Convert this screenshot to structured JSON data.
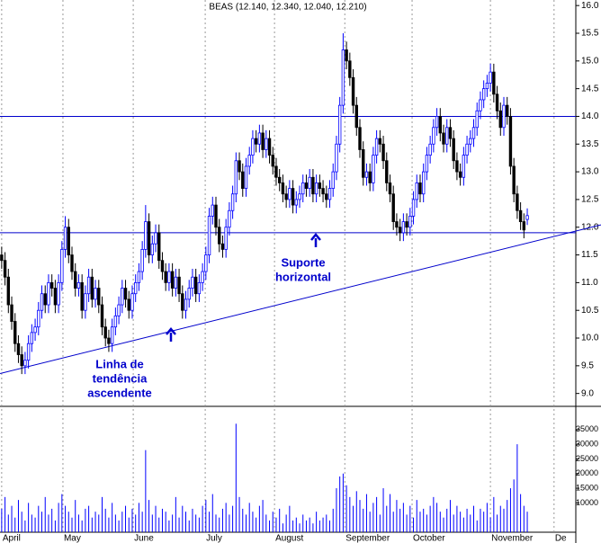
{
  "chart_data": {
    "type": "candlestick",
    "title": "BEAS (12.140, 12.340, 12.040, 12.210)",
    "open": [
      11.5,
      11.4,
      11.1,
      10.6,
      10.3,
      9.9,
      9.7,
      9.5,
      9.6,
      9.9,
      10.1,
      10.2,
      10.5,
      10.8,
      10.6,
      11.0,
      10.9,
      10.6,
      11.0,
      11.6,
      12.0,
      11.5,
      11.2,
      10.9,
      11.0,
      10.5,
      10.8,
      11.1,
      10.7,
      10.9,
      10.6,
      10.2,
      10.0,
      9.9,
      10.2,
      10.4,
      10.6,
      10.9,
      10.7,
      10.5,
      10.8,
      11.0,
      11.2,
      11.6,
      12.1,
      11.5,
      11.7,
      11.9,
      11.4,
      11.2,
      11.0,
      11.2,
      10.9,
      11.1,
      10.8,
      10.5,
      10.7,
      10.9,
      11.1,
      10.8,
      11.0,
      11.2,
      11.5,
      12.2,
      12.4,
      12.0,
      11.7,
      11.6,
      12.0,
      12.3,
      12.6,
      13.2,
      13.0,
      12.7,
      13.1,
      13.3,
      13.6,
      13.5,
      13.7,
      13.4,
      13.6,
      13.3,
      13.1,
      12.9,
      12.8,
      12.6,
      12.5,
      12.7,
      12.4,
      12.5,
      12.6,
      12.8,
      12.7,
      12.9,
      12.6,
      12.8,
      12.7,
      12.6,
      12.5,
      12.7,
      13.0,
      13.5,
      14.2,
      15.2,
      15.0,
      14.7,
      14.2,
      13.8,
      13.4,
      12.9,
      13.0,
      12.8,
      13.3,
      13.6,
      13.5,
      13.2,
      12.8,
      12.6,
      12.1,
      12.0,
      11.9,
      12.1,
      12.0,
      12.2,
      12.5,
      12.8,
      12.6,
      13.0,
      13.3,
      13.5,
      13.8,
      14.0,
      13.7,
      13.5,
      13.8,
      13.6,
      13.2,
      13.0,
      12.9,
      13.3,
      13.5,
      13.6,
      13.8,
      14.1,
      14.3,
      14.5,
      14.6,
      14.8,
      14.4,
      14.1,
      13.8,
      14.2,
      14.0,
      13.1,
      12.6,
      12.3,
      12.1,
      12.14
    ],
    "high": [
      11.65,
      11.55,
      11.25,
      10.75,
      10.45,
      10.05,
      9.85,
      9.75,
      10.05,
      10.25,
      10.35,
      10.65,
      10.95,
      10.95,
      11.15,
      11.15,
      11.05,
      11.15,
      11.75,
      12.2,
      12.15,
      11.65,
      11.35,
      11.15,
      11.15,
      10.95,
      11.25,
      11.25,
      11.05,
      11.05,
      10.75,
      10.35,
      10.15,
      10.35,
      10.55,
      10.75,
      11.05,
      11.05,
      10.85,
      10.95,
      11.15,
      11.35,
      11.75,
      12.4,
      12.25,
      11.85,
      12.05,
      12.05,
      11.55,
      11.35,
      11.35,
      11.35,
      11.25,
      11.25,
      10.95,
      10.85,
      11.05,
      11.25,
      11.25,
      11.15,
      11.35,
      11.65,
      12.35,
      12.55,
      12.55,
      12.15,
      11.85,
      12.15,
      12.45,
      12.75,
      13.35,
      13.35,
      13.15,
      13.25,
      13.45,
      13.75,
      13.75,
      13.85,
      13.85,
      13.75,
      13.75,
      13.45,
      13.25,
      13.05,
      12.95,
      12.75,
      12.85,
      12.85,
      12.65,
      12.75,
      12.95,
      12.95,
      13.05,
      13.05,
      12.95,
      12.95,
      12.85,
      12.75,
      12.85,
      13.15,
      13.65,
      14.35,
      15.5,
      15.35,
      15.15,
      14.85,
      14.35,
      13.95,
      13.55,
      13.15,
      13.15,
      13.45,
      13.75,
      13.75,
      13.65,
      13.35,
      12.95,
      12.75,
      12.25,
      12.15,
      12.25,
      12.25,
      12.35,
      12.65,
      12.95,
      12.95,
      13.15,
      13.45,
      13.65,
      13.95,
      14.15,
      14.15,
      13.85,
      13.95,
      13.95,
      13.75,
      13.35,
      13.15,
      13.45,
      13.65,
      13.75,
      13.95,
      14.25,
      14.45,
      14.65,
      14.75,
      14.95,
      14.95,
      14.55,
      14.25,
      14.35,
      14.35,
      14.15,
      13.25,
      12.75,
      12.45,
      12.25,
      12.34
    ],
    "low": [
      11.25,
      10.95,
      10.45,
      10.15,
      9.75,
      9.55,
      9.35,
      9.35,
      9.45,
      9.75,
      9.95,
      10.05,
      10.35,
      10.45,
      10.45,
      10.75,
      10.45,
      10.45,
      10.85,
      11.45,
      11.35,
      11.05,
      10.75,
      10.75,
      10.35,
      10.35,
      10.65,
      10.55,
      10.55,
      10.45,
      10.05,
      9.85,
      9.75,
      9.75,
      10.05,
      10.25,
      10.45,
      10.55,
      10.35,
      10.35,
      10.65,
      10.85,
      11.05,
      11.45,
      11.35,
      11.35,
      11.55,
      11.25,
      11.05,
      10.85,
      10.85,
      10.75,
      10.75,
      10.65,
      10.35,
      10.35,
      10.55,
      10.75,
      10.65,
      10.65,
      10.85,
      11.05,
      11.35,
      12.05,
      11.85,
      11.55,
      11.45,
      11.45,
      11.85,
      12.15,
      12.45,
      12.85,
      12.55,
      12.55,
      12.95,
      13.15,
      13.35,
      13.35,
      13.25,
      13.25,
      13.15,
      12.95,
      12.75,
      12.65,
      12.45,
      12.35,
      12.35,
      12.25,
      12.25,
      12.35,
      12.45,
      12.55,
      12.55,
      12.45,
      12.45,
      12.55,
      12.45,
      12.35,
      12.35,
      12.55,
      12.85,
      13.35,
      14.05,
      14.85,
      14.55,
      14.05,
      13.65,
      13.25,
      12.75,
      12.75,
      12.65,
      12.65,
      13.15,
      13.35,
      13.05,
      12.65,
      12.45,
      11.95,
      11.85,
      11.75,
      11.75,
      11.85,
      11.85,
      12.05,
      12.35,
      12.45,
      12.45,
      12.85,
      13.15,
      13.35,
      13.65,
      13.55,
      13.35,
      13.35,
      13.45,
      13.05,
      12.85,
      12.75,
      12.75,
      13.15,
      13.35,
      13.45,
      13.65,
      13.95,
      14.15,
      14.35,
      14.45,
      14.25,
      13.95,
      13.65,
      13.65,
      13.85,
      12.95,
      12.45,
      12.15,
      11.95,
      11.8,
      12.04
    ],
    "close": [
      11.4,
      11.1,
      10.6,
      10.3,
      9.9,
      9.7,
      9.5,
      9.6,
      9.9,
      10.1,
      10.2,
      10.5,
      10.8,
      10.6,
      11.0,
      10.9,
      10.6,
      11.0,
      11.6,
      12.0,
      11.5,
      11.2,
      10.9,
      11.0,
      10.5,
      10.8,
      11.1,
      10.7,
      10.9,
      10.6,
      10.2,
      10.0,
      9.9,
      10.2,
      10.4,
      10.6,
      10.9,
      10.7,
      10.5,
      10.8,
      11.0,
      11.2,
      11.6,
      12.1,
      11.5,
      11.7,
      11.9,
      11.4,
      11.2,
      11.0,
      11.2,
      10.9,
      11.1,
      10.8,
      10.5,
      10.7,
      10.9,
      11.1,
      10.8,
      11.0,
      11.2,
      11.5,
      12.2,
      12.4,
      12.0,
      11.7,
      11.6,
      12.0,
      12.3,
      12.6,
      13.2,
      13.0,
      12.7,
      13.1,
      13.3,
      13.6,
      13.5,
      13.7,
      13.4,
      13.6,
      13.3,
      13.1,
      12.9,
      12.8,
      12.6,
      12.5,
      12.7,
      12.4,
      12.5,
      12.6,
      12.8,
      12.7,
      12.9,
      12.6,
      12.8,
      12.7,
      12.6,
      12.5,
      12.7,
      13.0,
      13.5,
      14.2,
      15.2,
      15.0,
      14.7,
      14.2,
      13.8,
      13.4,
      12.9,
      13.0,
      12.8,
      13.3,
      13.6,
      13.5,
      13.2,
      12.8,
      12.6,
      12.1,
      12.0,
      11.9,
      12.1,
      12.0,
      12.2,
      12.5,
      12.8,
      12.6,
      13.0,
      13.3,
      13.5,
      13.8,
      14.0,
      13.7,
      13.5,
      13.8,
      13.6,
      13.2,
      13.0,
      12.9,
      13.3,
      13.5,
      13.6,
      13.8,
      14.1,
      14.3,
      14.5,
      14.6,
      14.8,
      14.4,
      14.1,
      13.8,
      14.2,
      14.0,
      13.1,
      12.6,
      12.3,
      12.1,
      11.95,
      12.21
    ],
    "colors": {
      "up": "#0000ff",
      "down": "#000000"
    },
    "xlim": [
      -0.5,
      171.5
    ],
    "xticks": [
      {
        "value": 0,
        "label": "April"
      },
      {
        "value": 18.3,
        "label": "May"
      },
      {
        "value": 39.3,
        "label": "June"
      },
      {
        "value": 60.8,
        "label": "July"
      },
      {
        "value": 81.5,
        "label": "August"
      },
      {
        "value": 102.5,
        "label": "September"
      },
      {
        "value": 122.6,
        "label": "October"
      },
      {
        "value": 146,
        "label": "November"
      },
      {
        "value": 165,
        "label": "De"
      }
    ],
    "ylim": [
      8.8,
      16.1
    ],
    "yticks": [
      {
        "value": 9,
        "label": "9.0"
      },
      9.5,
      {
        "value": 10,
        "label": "10.0"
      },
      10.5,
      {
        "value": 11,
        "label": "11.0"
      },
      11.5,
      {
        "value": 12,
        "label": "12.0"
      },
      12.5,
      {
        "value": 13,
        "label": "13.0"
      },
      13.5,
      {
        "value": 14,
        "label": "14.0"
      },
      14.5,
      {
        "value": 15,
        "label": "15.0"
      },
      15.5,
      {
        "value": 16,
        "label": "16.0"
      }
    ],
    "levels": [
      14.0,
      11.9
    ],
    "trendline": [
      9.36,
      11.93
    ],
    "line_color": "#0000cc",
    "annotations": [
      {
        "lines": [
          "Linha de",
          "tendência",
          "ascendente"
        ]
      },
      {
        "lines": [
          "Suporte",
          "horizontal"
        ]
      }
    ],
    "volume": {
      "color": "#0000ff",
      "ylim": [
        0,
        42000
      ],
      "yticks": [
        10000,
        15000,
        20000,
        25000,
        30000,
        35000
      ],
      "values": [
        8000,
        12000,
        6000,
        9000,
        5000,
        11000,
        7000,
        4000,
        10000,
        6000,
        5000,
        9000,
        7000,
        12000,
        6000,
        8000,
        4000,
        10000,
        13000,
        9000,
        7000,
        5000,
        11000,
        6000,
        4000,
        8000,
        9000,
        5000,
        7000,
        6000,
        12000,
        8000,
        5000,
        10000,
        6000,
        4000,
        7000,
        9000,
        5000,
        8000,
        6000,
        10000,
        7000,
        28000,
        11000,
        6000,
        9000,
        5000,
        8000,
        7000,
        4000,
        6000,
        12000,
        5000,
        9000,
        7000,
        4000,
        8000,
        6000,
        5000,
        9000,
        11000,
        7000,
        13000,
        6000,
        5000,
        8000,
        10000,
        6000,
        9000,
        37000,
        12000,
        8000,
        6000,
        10000,
        7000,
        5000,
        9000,
        11000,
        6000,
        4000,
        7000,
        5000,
        8000,
        3000,
        6000,
        9000,
        4000,
        5000,
        3000,
        6000,
        4000,
        5000,
        3000,
        7000,
        4000,
        5000,
        6000,
        4000,
        8000,
        15000,
        19000,
        20000,
        16000,
        12000,
        9000,
        14000,
        11000,
        8000,
        13000,
        7000,
        10000,
        12000,
        6000,
        15000,
        9000,
        13000,
        7000,
        11000,
        8000,
        10000,
        6000,
        9000,
        5000,
        11000,
        7000,
        8000,
        6000,
        9000,
        12000,
        10000,
        7000,
        5000,
        8000,
        11000,
        6000,
        9000,
        7000,
        5000,
        8000,
        6000,
        9000,
        4000,
        8000,
        7000,
        10000,
        5000,
        12000,
        6000,
        9000,
        8000,
        11000,
        15000,
        18000,
        30000,
        13000,
        9000,
        7000
      ]
    }
  }
}
